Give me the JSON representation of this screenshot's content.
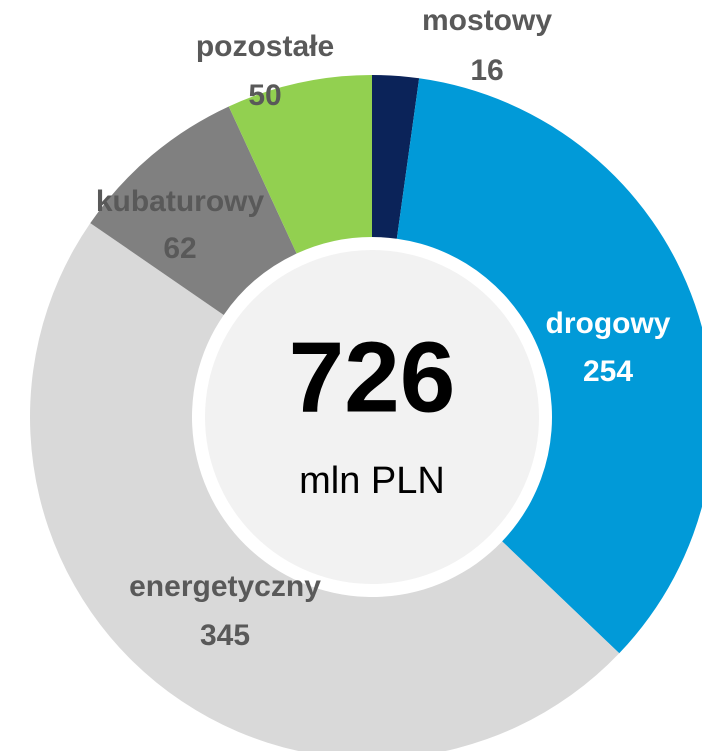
{
  "chart_data": {
    "type": "donut",
    "categories": [
      "mostowy",
      "drogowy",
      "energetyczny",
      "kubaturowy",
      "pozostałe"
    ],
    "values": [
      16,
      254,
      345,
      62,
      50
    ],
    "colors": [
      "#0b2359",
      "#019ad8",
      "#d9d9d9",
      "#808080",
      "#92d050"
    ],
    "total": 726,
    "total_unit": "mln PLN"
  }
}
